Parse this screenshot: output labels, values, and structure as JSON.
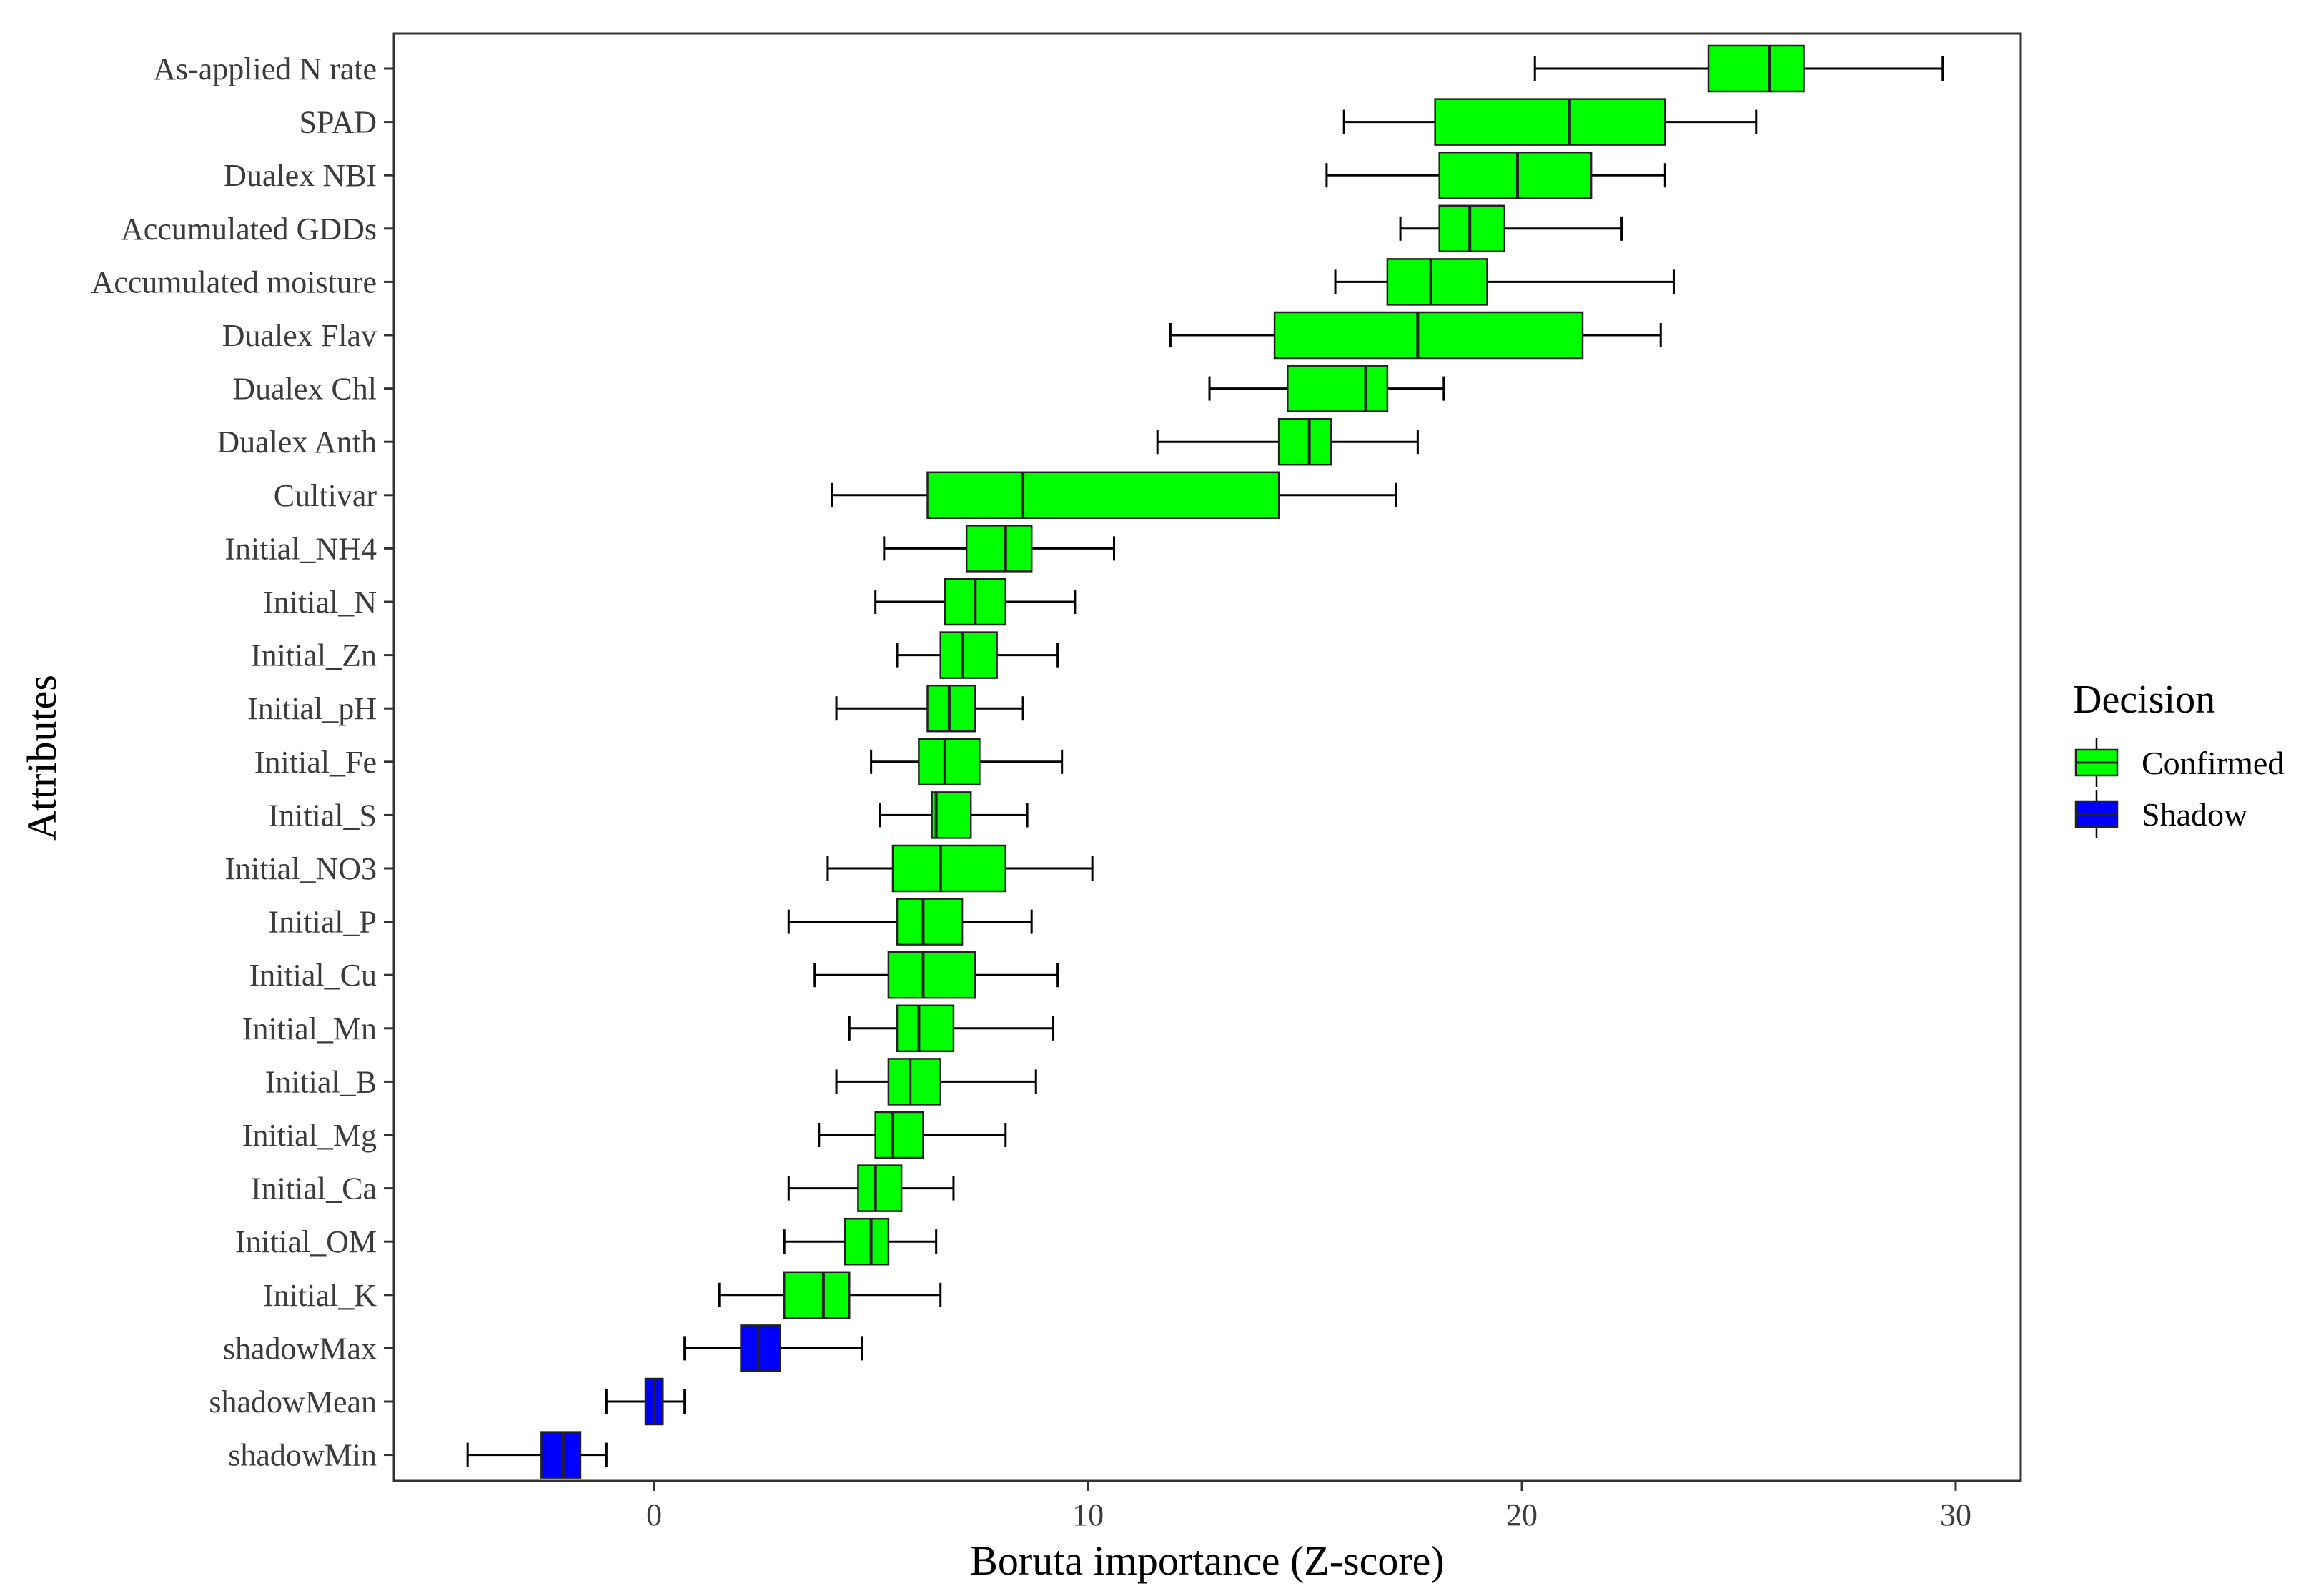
{
  "chart_data": {
    "type": "boxplot",
    "orientation": "horizontal",
    "title": "",
    "xlabel": "Boruta importance (Z-score)",
    "ylabel": "Attributes",
    "xlim": [
      -6,
      31.5
    ],
    "xticks": [
      0,
      10,
      20,
      30
    ],
    "grid": false,
    "legend": {
      "title": "Decision",
      "placement": "right",
      "entries": [
        {
          "name": "Confirmed",
          "color": "#00ff00"
        },
        {
          "name": "Shadow",
          "color": "#0000ff"
        }
      ]
    },
    "categories": [
      "As-applied N rate",
      "SPAD",
      "Dualex NBI",
      "Accumulated GDDs",
      "Accumulated moisture",
      "Dualex Flav",
      "Dualex Chl",
      "Dualex Anth",
      "Cultivar",
      "Initial_NH4",
      "Initial_N",
      "Initial_Zn",
      "Initial_pH",
      "Initial_Fe",
      "Initial_S",
      "Initial_NO3",
      "Initial_P",
      "Initial_Cu",
      "Initial_Mn",
      "Initial_B",
      "Initial_Mg",
      "Initial_Ca",
      "Initial_OM",
      "Initial_K",
      "shadowMax",
      "shadowMean",
      "shadowMin"
    ],
    "boxes": [
      {
        "label": "As-applied N rate",
        "decision": "Confirmed",
        "min": 20.3,
        "q1": 24.3,
        "median": 25.7,
        "q3": 26.5,
        "max": 29.7
      },
      {
        "label": "SPAD",
        "decision": "Confirmed",
        "min": 15.9,
        "q1": 18.0,
        "median": 21.1,
        "q3": 23.3,
        "max": 25.4
      },
      {
        "label": "Dualex NBI",
        "decision": "Confirmed",
        "min": 15.5,
        "q1": 18.1,
        "median": 19.9,
        "q3": 21.6,
        "max": 23.3
      },
      {
        "label": "Accumulated GDDs",
        "decision": "Confirmed",
        "min": 17.2,
        "q1": 18.1,
        "median": 18.8,
        "q3": 19.6,
        "max": 22.3
      },
      {
        "label": "Accumulated moisture",
        "decision": "Confirmed",
        "min": 15.7,
        "q1": 16.9,
        "median": 17.9,
        "q3": 19.2,
        "max": 23.5
      },
      {
        "label": "Dualex Flav",
        "decision": "Confirmed",
        "min": 11.9,
        "q1": 14.3,
        "median": 17.6,
        "q3": 21.4,
        "max": 23.2
      },
      {
        "label": "Dualex Chl",
        "decision": "Confirmed",
        "min": 12.8,
        "q1": 14.6,
        "median": 16.4,
        "q3": 16.9,
        "max": 18.2
      },
      {
        "label": "Dualex Anth",
        "decision": "Confirmed",
        "min": 11.6,
        "q1": 14.4,
        "median": 15.1,
        "q3": 15.6,
        "max": 17.6
      },
      {
        "label": "Cultivar",
        "decision": "Confirmed",
        "min": 4.1,
        "q1": 6.3,
        "median": 8.5,
        "q3": 14.4,
        "max": 17.1
      },
      {
        "label": "Initial_NH4",
        "decision": "Confirmed",
        "min": 5.3,
        "q1": 7.2,
        "median": 8.1,
        "q3": 8.7,
        "max": 10.6
      },
      {
        "label": "Initial_N",
        "decision": "Confirmed",
        "min": 5.1,
        "q1": 6.7,
        "median": 7.4,
        "q3": 8.1,
        "max": 9.7
      },
      {
        "label": "Initial_Zn",
        "decision": "Confirmed",
        "min": 5.6,
        "q1": 6.6,
        "median": 7.1,
        "q3": 7.9,
        "max": 9.3
      },
      {
        "label": "Initial_pH",
        "decision": "Confirmed",
        "min": 4.2,
        "q1": 6.3,
        "median": 6.8,
        "q3": 7.4,
        "max": 8.5
      },
      {
        "label": "Initial_Fe",
        "decision": "Confirmed",
        "min": 5.0,
        "q1": 6.1,
        "median": 6.7,
        "q3": 7.5,
        "max": 9.4
      },
      {
        "label": "Initial_S",
        "decision": "Confirmed",
        "min": 5.2,
        "q1": 6.4,
        "median": 6.5,
        "q3": 7.3,
        "max": 8.6
      },
      {
        "label": "Initial_NO3",
        "decision": "Confirmed",
        "min": 4.0,
        "q1": 5.5,
        "median": 6.6,
        "q3": 8.1,
        "max": 10.1
      },
      {
        "label": "Initial_P",
        "decision": "Confirmed",
        "min": 3.1,
        "q1": 5.6,
        "median": 6.2,
        "q3": 7.1,
        "max": 8.7
      },
      {
        "label": "Initial_Cu",
        "decision": "Confirmed",
        "min": 3.7,
        "q1": 5.4,
        "median": 6.2,
        "q3": 7.4,
        "max": 9.3
      },
      {
        "label": "Initial_Mn",
        "decision": "Confirmed",
        "min": 4.5,
        "q1": 5.6,
        "median": 6.1,
        "q3": 6.9,
        "max": 9.2
      },
      {
        "label": "Initial_B",
        "decision": "Confirmed",
        "min": 4.2,
        "q1": 5.4,
        "median": 5.9,
        "q3": 6.6,
        "max": 8.8
      },
      {
        "label": "Initial_Mg",
        "decision": "Confirmed",
        "min": 3.8,
        "q1": 5.1,
        "median": 5.5,
        "q3": 6.2,
        "max": 8.1
      },
      {
        "label": "Initial_Ca",
        "decision": "Confirmed",
        "min": 3.1,
        "q1": 4.7,
        "median": 5.1,
        "q3": 5.7,
        "max": 6.9
      },
      {
        "label": "Initial_OM",
        "decision": "Confirmed",
        "min": 3.0,
        "q1": 4.4,
        "median": 5.0,
        "q3": 5.4,
        "max": 6.5
      },
      {
        "label": "Initial_K",
        "decision": "Confirmed",
        "min": 1.5,
        "q1": 3.0,
        "median": 3.9,
        "q3": 4.5,
        "max": 6.6
      },
      {
        "label": "shadowMax",
        "decision": "Shadow",
        "min": 0.7,
        "q1": 2.0,
        "median": 2.4,
        "q3": 2.9,
        "max": 4.8
      },
      {
        "label": "shadowMean",
        "decision": "Shadow",
        "min": -1.1,
        "q1": -0.2,
        "median": 0.0,
        "q3": 0.2,
        "max": 0.7
      },
      {
        "label": "shadowMin",
        "decision": "Shadow",
        "min": -4.3,
        "q1": -2.6,
        "median": -2.1,
        "q3": -1.7,
        "max": -1.1
      }
    ]
  }
}
